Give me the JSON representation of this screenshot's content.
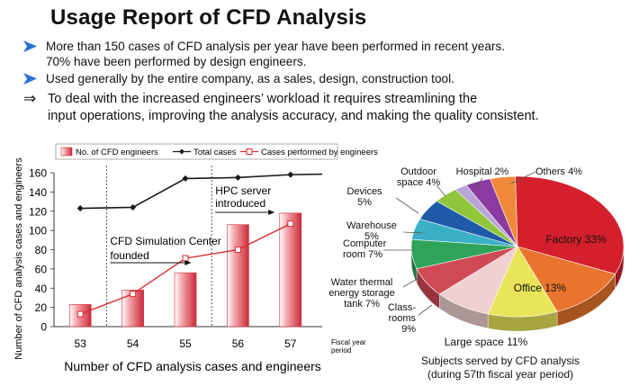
{
  "title": "Usage Report of CFD Analysis",
  "bullets": [
    {
      "line1": "More than 150 cases of CFD analysis per year have been performed in recent years.",
      "line2": "70% have been performed by design engineers."
    },
    {
      "line1": "Used generally by the entire company, as a sales, design, construction tool.",
      "line2": ""
    }
  ],
  "conclusion": {
    "symbol": "⇒",
    "line1": "To deal with the increased engineers’ workload it requires streamlining the",
    "line2": "input operations, improving the analysis accuracy, and making the quality consistent."
  },
  "colors": {
    "bullet_arrow": "#2a6fd6",
    "bar": "#cc2b3a",
    "engineers_line": "#d9282f",
    "total_line": "#1a1a1a"
  },
  "chart_data": [
    {
      "type": "bar",
      "categories": [
        "53",
        "54",
        "55",
        "56",
        "57"
      ],
      "x_period_label": "Fiscal year period",
      "ylabel": "Number of CFD analysis cases and engineers",
      "xlabel": "Number of CFD analysis cases and engineers",
      "ylim": [
        0,
        160
      ],
      "yticks": [
        0,
        20,
        40,
        60,
        80,
        100,
        120,
        140,
        160
      ],
      "legend_position": "top",
      "series": [
        {
          "name": "No. of CFD engineers",
          "type": "bar",
          "values": [
            23,
            38,
            56,
            106,
            118
          ]
        },
        {
          "name": "Total cases",
          "type": "line",
          "values": [
            123,
            124,
            154,
            155,
            158
          ]
        },
        {
          "name": "Cases performed by engineers",
          "type": "line",
          "values": [
            13,
            34,
            71,
            80,
            107
          ]
        }
      ],
      "annotations": [
        {
          "text_lines": [
            "CFD Simulation Center",
            "founded"
          ],
          "at_category": "55"
        },
        {
          "text_lines": [
            "HPC server",
            "introduced"
          ],
          "at_category": "57"
        }
      ]
    },
    {
      "type": "pie",
      "title_lines": [
        "Subjects served by CFD analysis",
        "(during 57th fiscal year period)"
      ],
      "slices": [
        {
          "label": "Factory 33%",
          "value": 33,
          "color": "#d4202c"
        },
        {
          "label": "Office 13%",
          "value": 13,
          "color": "#e8742e"
        },
        {
          "label": "Large space 11%",
          "value": 11,
          "color": "#e8e55a"
        },
        {
          "label": "Class-rooms 9%",
          "value": 9,
          "color": "#f0d0d0"
        },
        {
          "label": "Water thermal energy storage tank 7%",
          "value": 7,
          "color": "#d04a56"
        },
        {
          "label": "Computer room 7%",
          "value": 7,
          "color": "#2fa35a"
        },
        {
          "label": "Warehouse 5%",
          "value": 5,
          "color": "#3ab0c7"
        },
        {
          "label": "Devices 5%",
          "value": 5,
          "color": "#1e5aa8"
        },
        {
          "label": "Outdoor space 4%",
          "value": 4,
          "color": "#8fc63a"
        },
        {
          "label": "Hospital 2%",
          "value": 2,
          "color": "#b9a5d6"
        },
        {
          "label": "Others 4%",
          "value": 4,
          "color": "#8b3aa0"
        }
      ],
      "extra_slice": {
        "label": "",
        "value": 4,
        "color": "#f08a3a"
      }
    }
  ]
}
